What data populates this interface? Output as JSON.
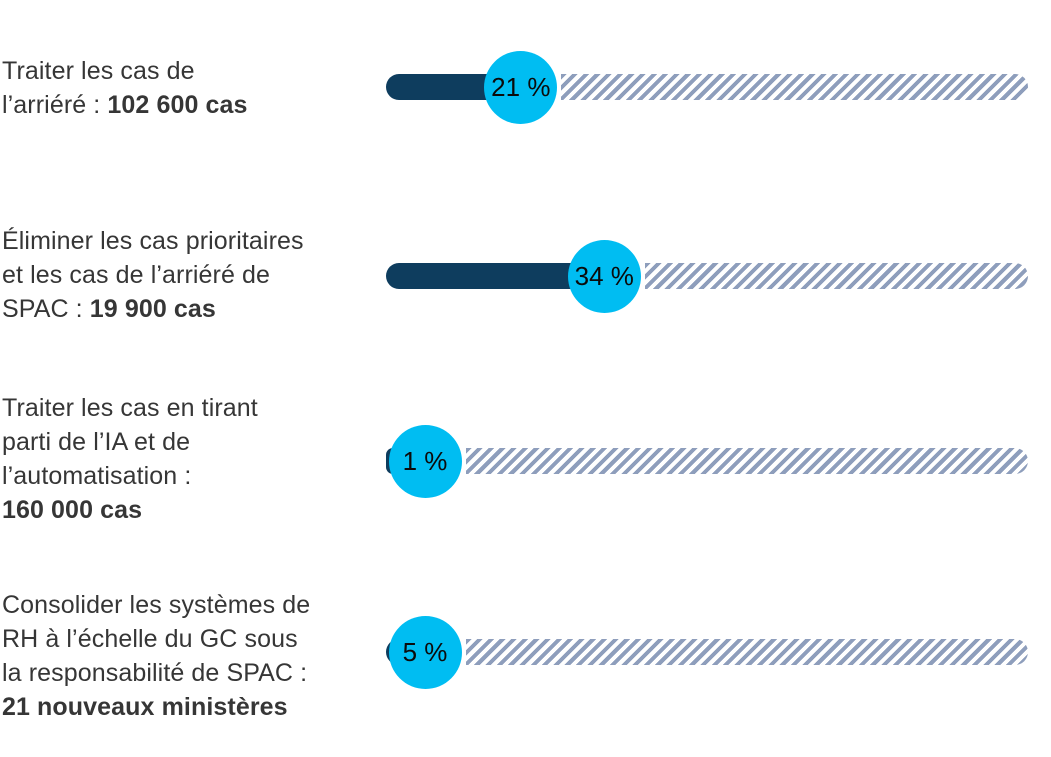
{
  "chart_data": {
    "type": "bar",
    "orientation": "horizontal",
    "title": "",
    "categories": [
      "Traiter les cas de l’arriéré : 102 600 cas",
      "Éliminer les cas prioritaires et les cas de l’arriéré de SPAC : 19 900 cas",
      "Traiter les cas en tirant parti de l’IA et de l’automatisation : 160 000 cas",
      "Consolider les systèmes de RH à l’échelle du GC sous la responsabilité de SPAC : 21 nouveaux ministères"
    ],
    "values": [
      21,
      34,
      1,
      5
    ],
    "value_labels": [
      "21 %",
      "34 %",
      "1 %",
      "5 %"
    ],
    "xlim": [
      0,
      100
    ],
    "unit": "%",
    "grid": false,
    "legend": "none",
    "style_notes": "progress bars: dark navy fill, cyan circular percent badge, hatched remainder"
  },
  "colors": {
    "fill_navy": "#0E3D5E",
    "badge_cyan": "#00BDF2",
    "hatch_stripe": "#8E9EBC",
    "label_text": "#363636",
    "badge_text": "#0B0B0B",
    "background": "#FFFFFF"
  },
  "rows": [
    {
      "percent": 21,
      "percent_label": "21 %",
      "label_lines": [
        [
          {
            "text": "Traiter les cas de",
            "bold": false
          }
        ],
        [
          {
            "text": "l’arriéré : ",
            "bold": false
          },
          {
            "text": "102 600 cas",
            "bold": true
          }
        ]
      ]
    },
    {
      "percent": 34,
      "percent_label": "34 %",
      "label_lines": [
        [
          {
            "text": "Éliminer les cas prioritaires",
            "bold": false
          }
        ],
        [
          {
            "text": "et les cas de l’arriéré de",
            "bold": false
          }
        ],
        [
          {
            "text": "SPAC : ",
            "bold": false
          },
          {
            "text": "19 900 cas",
            "bold": true
          }
        ]
      ]
    },
    {
      "percent": 1,
      "percent_label": "1 %",
      "label_lines": [
        [
          {
            "text": "Traiter les cas en tirant",
            "bold": false
          }
        ],
        [
          {
            "text": "parti de l’IA et de",
            "bold": false
          }
        ],
        [
          {
            "text": "l’automatisation :",
            "bold": false
          }
        ],
        [
          {
            "text": "160 000 cas",
            "bold": true
          }
        ]
      ]
    },
    {
      "percent": 5,
      "percent_label": "5 %",
      "label_lines": [
        [
          {
            "text": "Consolider les systèmes de",
            "bold": false
          }
        ],
        [
          {
            "text": "RH à l’échelle du GC sous",
            "bold": false
          }
        ],
        [
          {
            "text": "la responsabilité de SPAC :",
            "bold": false
          }
        ],
        [
          {
            "text": "21 nouveaux ministères",
            "bold": true
          }
        ]
      ]
    }
  ]
}
